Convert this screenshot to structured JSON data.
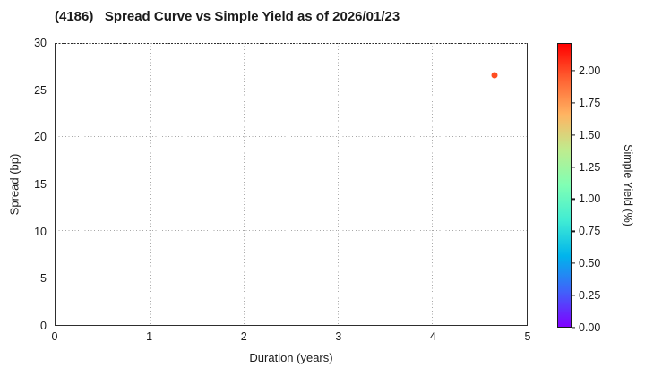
{
  "title": "(4186)   Spread Curve vs Simple Yield as of 2026/01/23",
  "chart_data": {
    "type": "scatter",
    "title": "(4186)   Spread Curve vs Simple Yield as of 2026/01/23",
    "xlabel": "Duration (years)",
    "ylabel": "Spread (bp)",
    "xlim": [
      0,
      5
    ],
    "ylim": [
      0,
      30
    ],
    "xticks": [
      0,
      1,
      2,
      3,
      4,
      5
    ],
    "yticks": [
      0,
      5,
      10,
      15,
      20,
      25,
      30
    ],
    "grid": true,
    "points": [
      {
        "duration_years": 4.66,
        "spread_bp": 26.6,
        "simple_yield_pct": 2.0,
        "color": "#FF4D22"
      }
    ],
    "colorbar": {
      "label": "Simple Yield (%)",
      "min": 0.0,
      "max": 2.216,
      "ticks": [
        0.0,
        0.25,
        0.5,
        0.75,
        1.0,
        1.25,
        1.5,
        1.75,
        2.0
      ],
      "tick_labels": [
        "0.00",
        "0.25",
        "0.50",
        "0.75",
        "1.00",
        "1.25",
        "1.50",
        "1.75",
        "2.00"
      ],
      "colormap": "rainbow",
      "gradient_stops_bottom_to_top": [
        "#8000FF",
        "#4062FA",
        "#00B4EC",
        "#40ECD4",
        "#80FFB4",
        "#BFEC8E",
        "#FFB462",
        "#FF6232",
        "#FF0000"
      ]
    },
    "colors": {
      "background": "#ffffff",
      "grid": "#a8a8a8",
      "axis": "#2e2e2e",
      "text": "#1a1a1a"
    }
  }
}
